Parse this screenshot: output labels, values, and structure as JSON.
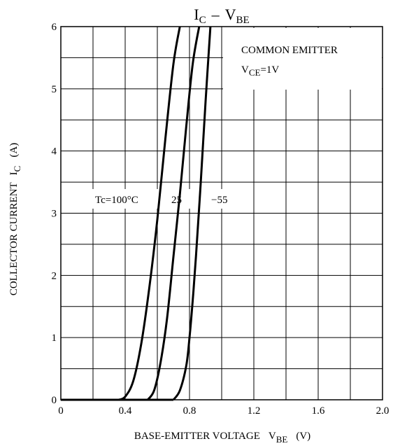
{
  "chart_data": {
    "type": "line",
    "title": {
      "main": "I",
      "main_sub": "C",
      "dash": "–",
      "main2": "V",
      "main2_sub": "BE"
    },
    "xlabel": {
      "text": "BASE-EMITTER VOLTAGE",
      "sym": "V",
      "sym_sub": "BE",
      "unit": "(V)"
    },
    "ylabel": {
      "text": "COLLECTOR CURRENT",
      "sym": "I",
      "sym_sub": "C",
      "unit": "(A)"
    },
    "xlim": [
      0,
      2.0
    ],
    "ylim": [
      0,
      6
    ],
    "x_ticks": [
      "0",
      "0.4",
      "0.8",
      "1.2",
      "1.6",
      "2.0"
    ],
    "y_ticks": [
      "0",
      "1",
      "2",
      "3",
      "4",
      "5",
      "6"
    ],
    "grid": true,
    "legend": {
      "line1": "COMMON EMITTER",
      "line2_sym": "V",
      "line2_sub": "CE",
      "line2_val": "=1V",
      "placement": "top-right"
    },
    "curve_labels": {
      "tc100": "Tc=100°C",
      "tc25": "25",
      "tcm55": "−55"
    },
    "series": [
      {
        "label_key": "tc100",
        "x": [
          0.36,
          0.4,
          0.45,
          0.5,
          0.55,
          0.6,
          0.65,
          0.7,
          0.74
        ],
        "y": [
          0.0,
          0.05,
          0.3,
          0.9,
          1.8,
          2.9,
          4.2,
          5.4,
          6.0
        ]
      },
      {
        "label_key": "tc25",
        "x": [
          0.54,
          0.58,
          0.62,
          0.66,
          0.7,
          0.74,
          0.78,
          0.82,
          0.86
        ],
        "y": [
          0.0,
          0.15,
          0.6,
          1.3,
          2.3,
          3.3,
          4.4,
          5.4,
          6.0
        ]
      },
      {
        "label_key": "tcm55",
        "x": [
          0.7,
          0.74,
          0.78,
          0.8,
          0.82,
          0.84,
          0.87,
          0.9,
          0.93
        ],
        "y": [
          0.0,
          0.15,
          0.55,
          1.0,
          1.6,
          2.3,
          3.5,
          4.8,
          6.0
        ]
      }
    ]
  }
}
